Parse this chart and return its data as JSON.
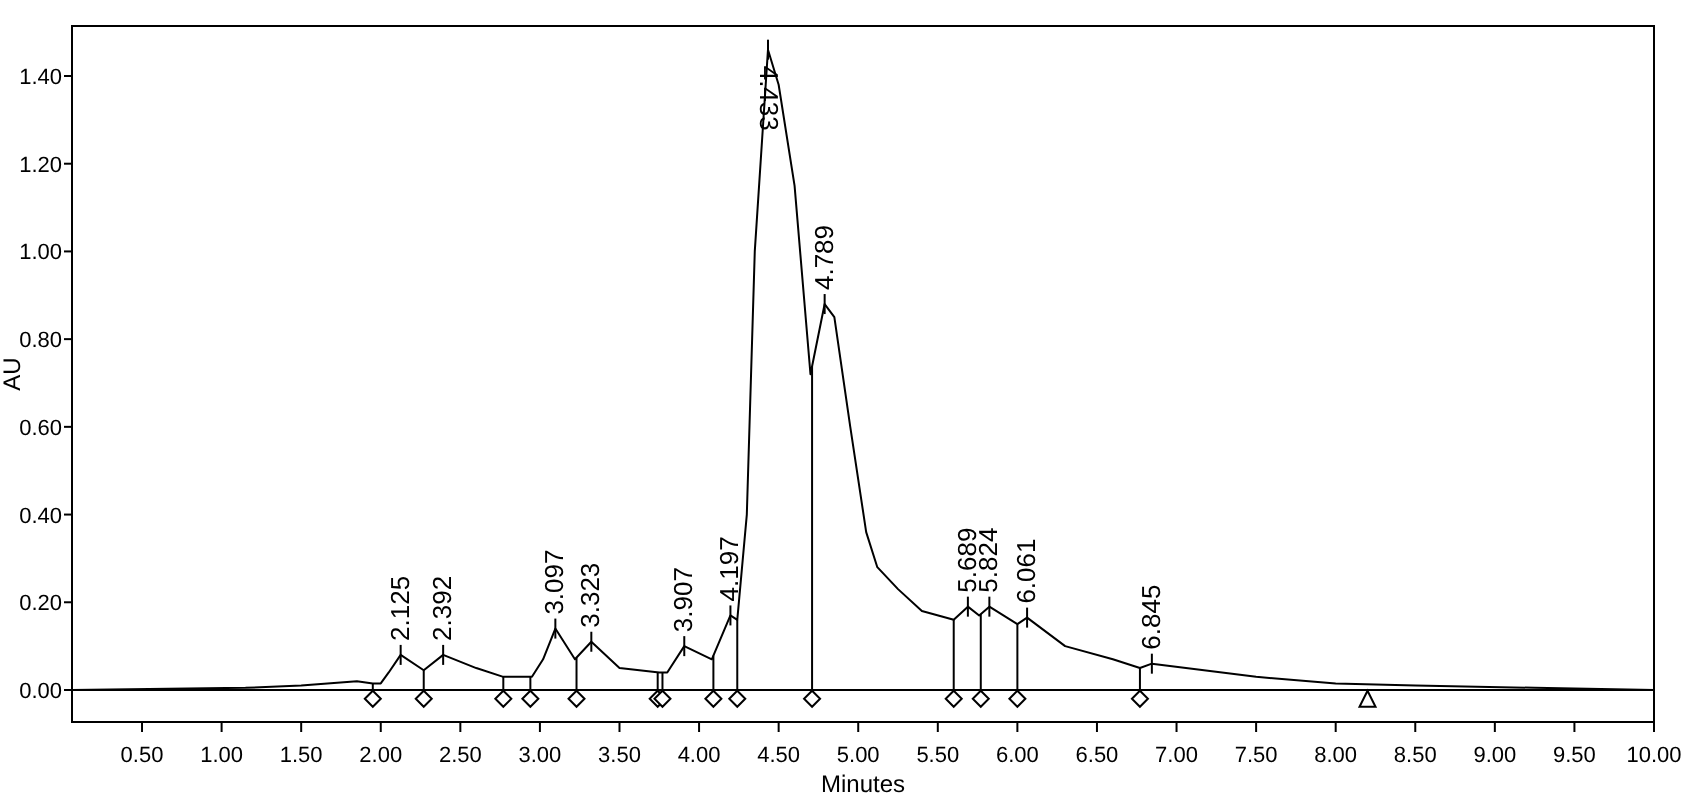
{
  "chart_data": {
    "type": "line",
    "xlabel": "Minutes",
    "ylabel": "AU",
    "xlim": [
      0.06,
      10.0
    ],
    "ylim": [
      -0.073,
      1.514
    ],
    "xticks": [
      {
        "value": 0.5,
        "label": "0.50"
      },
      {
        "value": 1,
        "label": "1.00"
      },
      {
        "value": 1.5,
        "label": "1.50"
      },
      {
        "value": 2,
        "label": "2.00"
      },
      {
        "value": 2.5,
        "label": "2.50"
      },
      {
        "value": 3,
        "label": "3.00"
      },
      {
        "value": 3.5,
        "label": "3.50"
      },
      {
        "value": 4,
        "label": "4.00"
      },
      {
        "value": 4.5,
        "label": "4.50"
      },
      {
        "value": 5,
        "label": "5.00"
      },
      {
        "value": 5.5,
        "label": "5.50"
      },
      {
        "value": 6,
        "label": "6.00"
      },
      {
        "value": 6.5,
        "label": "6.50"
      },
      {
        "value": 7,
        "label": "7.00"
      },
      {
        "value": 7.5,
        "label": "7.50"
      },
      {
        "value": 8,
        "label": "8.00"
      },
      {
        "value": 8.5,
        "label": "8.50"
      },
      {
        "value": 9,
        "label": "9.00"
      },
      {
        "value": 9.5,
        "label": "9.50"
      },
      {
        "value": 10,
        "label": "10.00"
      }
    ],
    "yticks": [
      {
        "value": 0,
        "label": "0.00"
      },
      {
        "value": 0.2,
        "label": "0.20"
      },
      {
        "value": 0.4,
        "label": "0.40"
      },
      {
        "value": 0.6,
        "label": "0.60"
      },
      {
        "value": 0.8,
        "label": "0.80"
      },
      {
        "value": 1.0,
        "label": "1.00"
      },
      {
        "value": 1.2,
        "label": "1.20"
      },
      {
        "value": 1.4,
        "label": "1.40"
      }
    ],
    "grid": false,
    "ref_lines": [
      {
        "axis": "y",
        "value": 0,
        "color": "#000000"
      }
    ],
    "series": [
      {
        "color": "#000000",
        "x": [
          0.06,
          1.15,
          1.5,
          1.85,
          1.95,
          2.0,
          2.05,
          2.125,
          2.27,
          2.392,
          2.6,
          2.77,
          2.95,
          3.02,
          3.097,
          3.22,
          3.323,
          3.5,
          3.75,
          3.8,
          3.907,
          4.08,
          4.197,
          4.24,
          4.3,
          4.35,
          4.433,
          4.5,
          4.6,
          4.7,
          4.789,
          4.85,
          4.95,
          5.05,
          5.12,
          5.25,
          5.4,
          5.6,
          5.689,
          5.76,
          5.824,
          6.0,
          6.061,
          6.3,
          6.6,
          6.77,
          6.845,
          7.5,
          8.0,
          8.5,
          9.25,
          10.0
        ],
        "values": [
          0.0,
          0.005,
          0.01,
          0.02,
          0.015,
          0.015,
          0.04,
          0.08,
          0.045,
          0.08,
          0.05,
          0.03,
          0.03,
          0.07,
          0.14,
          0.07,
          0.11,
          0.05,
          0.04,
          0.04,
          0.1,
          0.07,
          0.17,
          0.16,
          0.4,
          1.0,
          1.46,
          1.38,
          1.15,
          0.72,
          0.88,
          0.85,
          0.6,
          0.36,
          0.28,
          0.23,
          0.18,
          0.16,
          0.19,
          0.17,
          0.19,
          0.15,
          0.165,
          0.1,
          0.07,
          0.05,
          0.06,
          0.03,
          0.015,
          0.01,
          0.005,
          0.0
        ]
      },
      {
        "type": "scatter",
        "color": "#000000",
        "marker": "diamond",
        "x": [
          1.95,
          2.27,
          2.77,
          2.94,
          3.23,
          3.74,
          3.77,
          4.09,
          4.24,
          4.71,
          5.6,
          5.77,
          6.0,
          6.77
        ],
        "values": [
          -0.02,
          -0.02,
          -0.02,
          -0.02,
          -0.02,
          -0.02,
          -0.02,
          -0.02,
          -0.02,
          -0.02,
          -0.02,
          -0.02,
          -0.02,
          -0.02
        ]
      },
      {
        "type": "scatter",
        "color": "#000000",
        "marker": "triangle",
        "x": [
          8.2
        ],
        "values": [
          -0.02
        ]
      }
    ],
    "annotations": [
      {
        "text": "2.125",
        "x": 2.125,
        "y": 0.08
      },
      {
        "text": "2.392",
        "x": 2.392,
        "y": 0.08
      },
      {
        "text": "3.097",
        "x": 3.097,
        "y": 0.14
      },
      {
        "text": "3.323",
        "x": 3.323,
        "y": 0.11
      },
      {
        "text": "3.907",
        "x": 3.907,
        "y": 0.1
      },
      {
        "text": "4.197",
        "x": 4.197,
        "y": 0.17
      },
      {
        "text": "4.433",
        "x": 4.433,
        "y": 1.46
      },
      {
        "text": "4.789",
        "x": 4.789,
        "y": 0.88
      },
      {
        "text": "5.689",
        "x": 5.689,
        "y": 0.19
      },
      {
        "text": "5.824",
        "x": 5.824,
        "y": 0.19
      },
      {
        "text": "6.061",
        "x": 6.061,
        "y": 0.165
      },
      {
        "text": "6.845",
        "x": 6.845,
        "y": 0.06
      }
    ]
  }
}
